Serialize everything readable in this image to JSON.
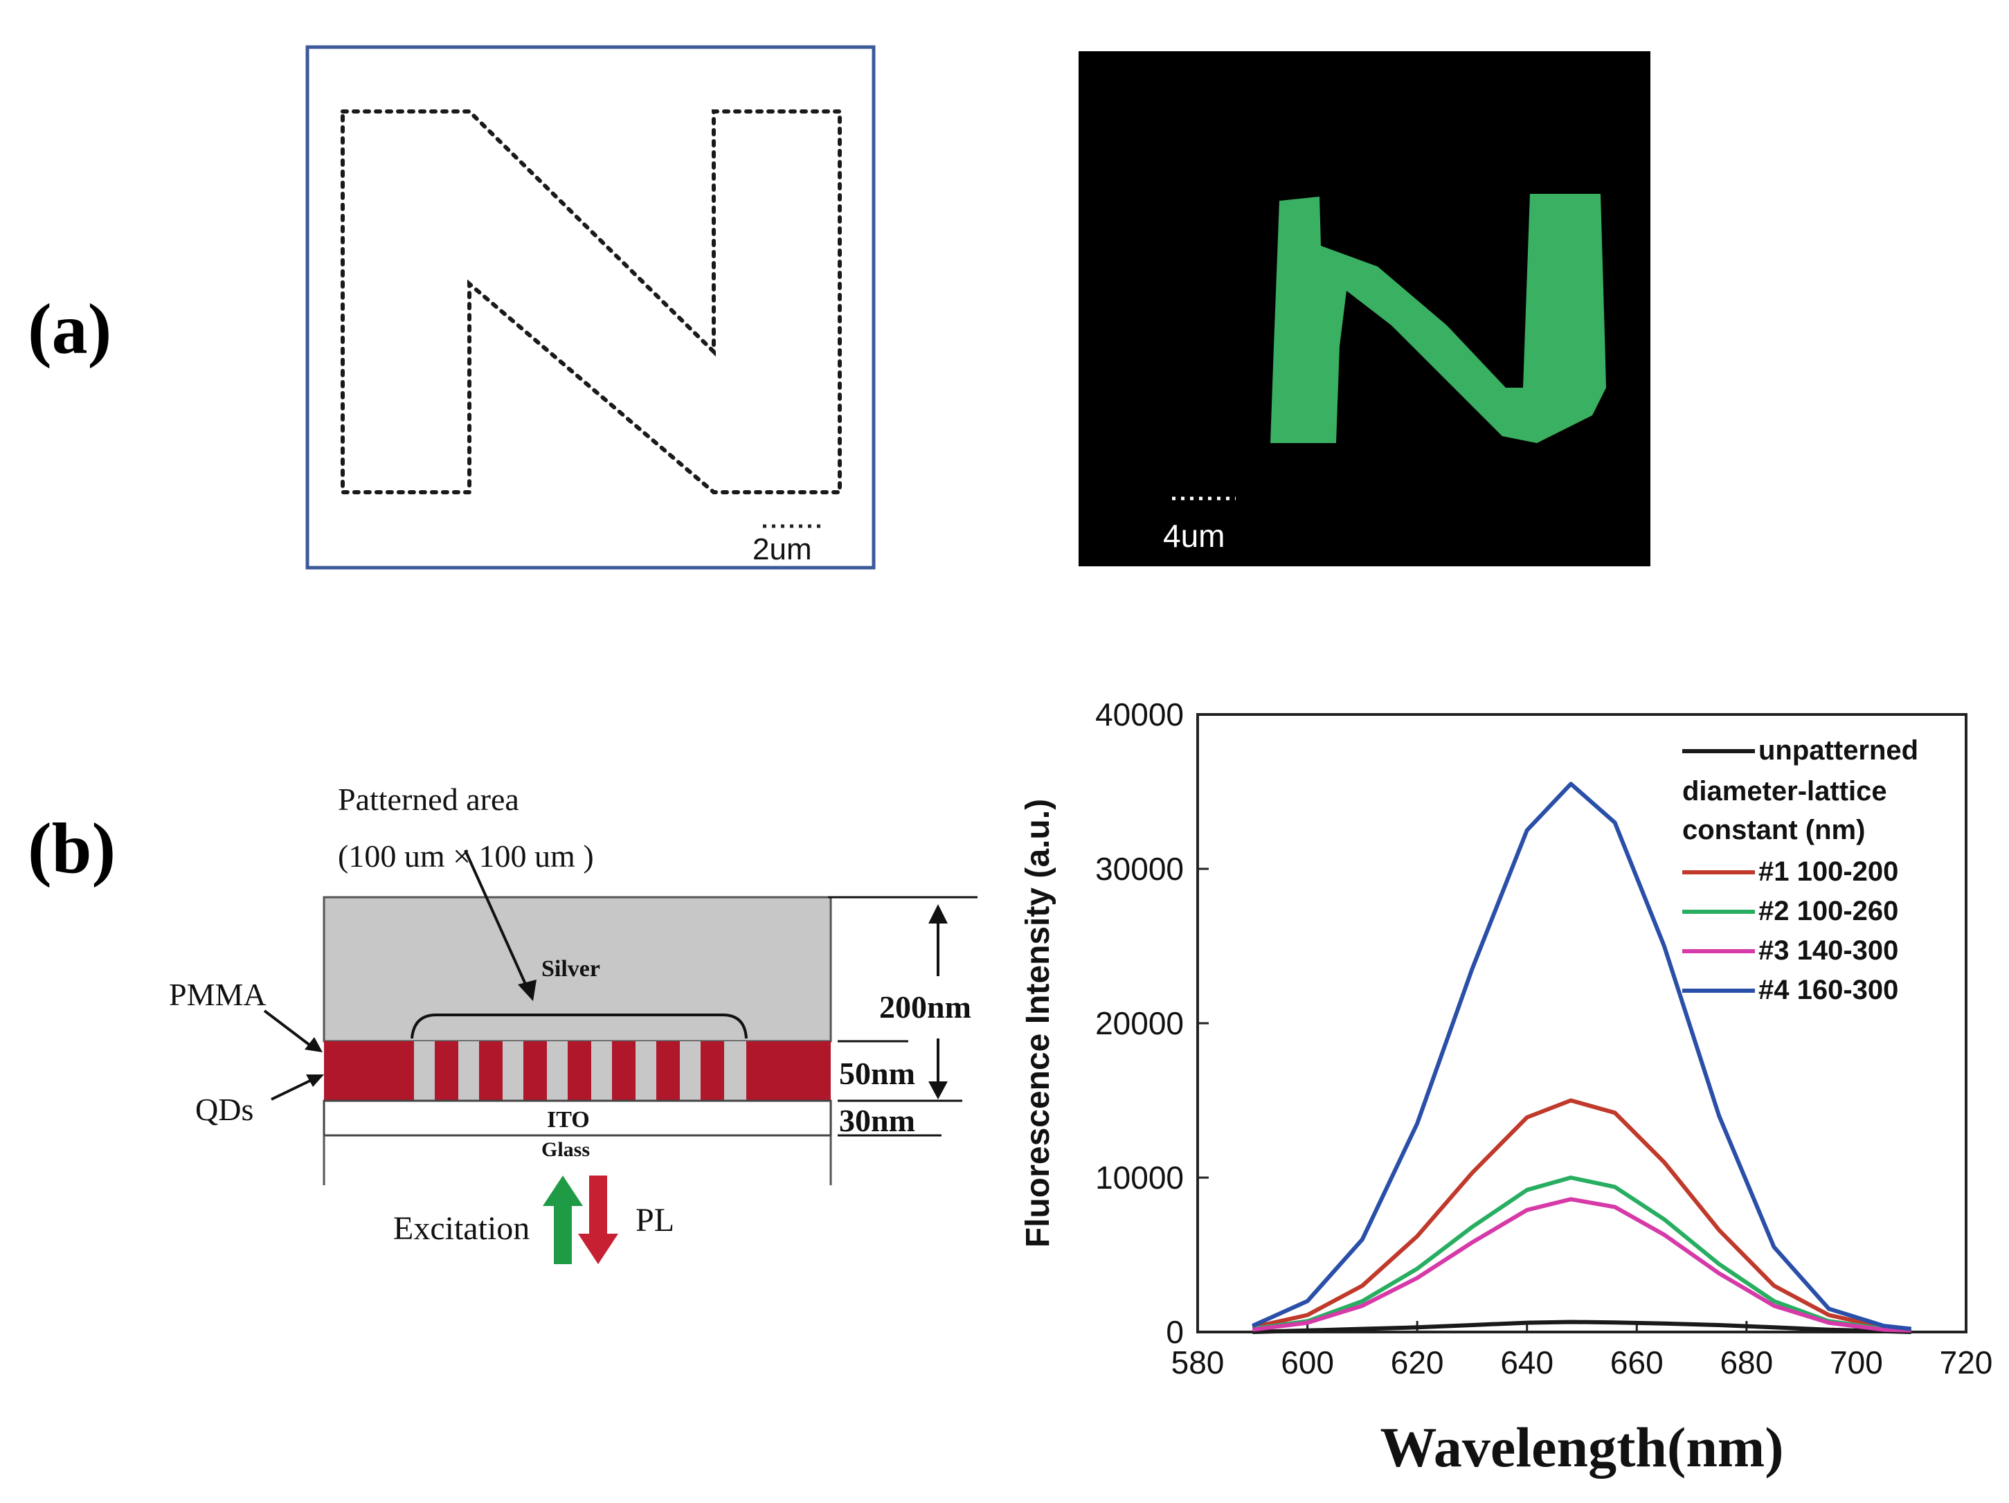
{
  "panel_a": {
    "label": "(a)",
    "design_scale_label": "2um",
    "micrograph_scale_label": "4um",
    "pattern_color": "#1a1a1a",
    "frame_color": "#3c5a9a",
    "fluorescence_color": "#3fbf6a"
  },
  "panel_b": {
    "label": "(b)",
    "schematic": {
      "patterned_area_label": "Patterned area",
      "patterned_area_size": "(100 um × 100 um )",
      "silver_label": "Silver",
      "pmma_label": "PMMA",
      "qds_label": "QDs",
      "ito_label": "ITO",
      "glass_label": "Glass",
      "dim_200": "200nm",
      "dim_50": "50nm",
      "dim_30": "30nm",
      "excitation_label": "Excitation",
      "pl_label": "PL",
      "pmma_color": "#c7c7c7",
      "qd_color": "#b0172b",
      "excitation_color": "#1f9a45",
      "pl_color": "#c62032"
    }
  },
  "chart_data": {
    "type": "line",
    "xlabel": "Wavelength(nm)",
    "ylabel": "Fluorescence Intensity (a.u.)",
    "xlim": [
      580,
      720
    ],
    "ylim": [
      0,
      40000
    ],
    "xticks": [
      580,
      600,
      620,
      640,
      660,
      680,
      700,
      720
    ],
    "yticks": [
      0,
      10000,
      20000,
      30000,
      40000
    ],
    "legend_title": "diameter-lattice constant (nm)",
    "legend_placement": "top-right",
    "x": [
      590,
      600,
      610,
      620,
      630,
      640,
      648,
      656,
      665,
      675,
      685,
      695,
      705,
      710
    ],
    "series": [
      {
        "name": "unpatterned",
        "color": "#1a1a1a",
        "values": [
          0,
          100,
          200,
          300,
          450,
          600,
          650,
          620,
          550,
          450,
          300,
          150,
          50,
          0
        ]
      },
      {
        "name": "#1 100-200",
        "color": "#c0392b",
        "values": [
          300,
          1100,
          3000,
          6200,
          10300,
          13900,
          15000,
          14200,
          11000,
          6600,
          3000,
          1100,
          300,
          200
        ]
      },
      {
        "name": "#2 100-260",
        "color": "#27ae60",
        "values": [
          200,
          700,
          2000,
          4100,
          6800,
          9200,
          10000,
          9400,
          7300,
          4400,
          2000,
          700,
          200,
          150
        ]
      },
      {
        "name": "#3 140-300",
        "color": "#d63aa8",
        "values": [
          150,
          600,
          1700,
          3500,
          5800,
          7900,
          8600,
          8100,
          6300,
          3800,
          1700,
          600,
          150,
          100
        ]
      },
      {
        "name": "#4 160-300",
        "color": "#2a4fa8",
        "values": [
          400,
          2000,
          6000,
          13500,
          23500,
          32500,
          35500,
          33000,
          25000,
          14000,
          5500,
          1500,
          400,
          200
        ]
      }
    ]
  }
}
